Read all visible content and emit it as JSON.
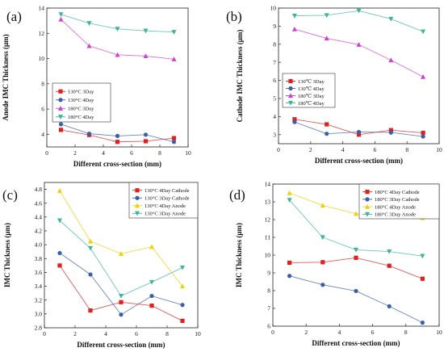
{
  "chart_data": [
    {
      "type": "line",
      "panel_label": "(a)",
      "xlabel": "Different cross-section (mm)",
      "ylabel": "Anode IMC Thickness (μm)",
      "xlim": [
        0,
        10
      ],
      "ylim": [
        3,
        14
      ],
      "xticks": [
        0,
        2,
        4,
        6,
        8,
        10
      ],
      "yticks": [
        4,
        6,
        8,
        10,
        12,
        14
      ],
      "x": [
        1,
        3,
        5,
        7,
        9
      ],
      "legend_position": "middle-left",
      "series": [
        {
          "name": "130°C 3Day",
          "color": "#e02020",
          "marker": "square",
          "values": [
            4.35,
            3.95,
            3.4,
            3.45,
            3.7
          ]
        },
        {
          "name": "130°C 4Day",
          "color": "#3a5fa8",
          "marker": "circle",
          "values": [
            4.8,
            4.05,
            3.87,
            3.97,
            3.4
          ]
        },
        {
          "name": "180°C 3Day",
          "color": "#d040d0",
          "marker": "triangle-up",
          "values": [
            13.1,
            11.0,
            10.3,
            10.2,
            9.95
          ]
        },
        {
          "name": "180°C 4Day",
          "color": "#3cb59a",
          "marker": "triangle-down",
          "values": [
            13.5,
            12.8,
            12.35,
            12.2,
            12.1
          ]
        }
      ]
    },
    {
      "type": "line",
      "panel_label": "(b)",
      "xlabel": "Different cross-section (mm)",
      "ylabel": "Cathode IMC Thickness (μm)",
      "xlim": [
        0,
        10
      ],
      "ylim": [
        2.5,
        10
      ],
      "xticks": [
        0,
        2,
        4,
        6,
        8,
        10
      ],
      "yticks": [
        3,
        4,
        5,
        6,
        7,
        8,
        9,
        10
      ],
      "x": [
        1,
        3,
        5,
        7,
        9
      ],
      "legend_position": "bottom-left",
      "series": [
        {
          "name": "130℃ 3Day",
          "color": "#e02020",
          "marker": "square",
          "values": [
            3.85,
            3.57,
            3.0,
            3.25,
            3.1
          ]
        },
        {
          "name": "130℃ 4Day",
          "color": "#3a5fa8",
          "marker": "circle",
          "values": [
            3.7,
            3.05,
            3.15,
            3.12,
            2.9
          ]
        },
        {
          "name": "180℃ 3Day",
          "color": "#d040d0",
          "marker": "triangle-up",
          "values": [
            8.83,
            8.33,
            7.98,
            7.12,
            6.2
          ]
        },
        {
          "name": "180℃ 4Day",
          "color": "#3cb59a",
          "marker": "triangle-down",
          "values": [
            9.57,
            9.6,
            9.85,
            9.4,
            8.7
          ]
        }
      ]
    },
    {
      "type": "line",
      "panel_label": "(c)",
      "xlabel": "Different cross-section (mm)",
      "ylabel": "IMC Thickness (μm)",
      "xlim": [
        0,
        10
      ],
      "ylim": [
        2.8,
        4.9
      ],
      "xticks": [
        0,
        2,
        4,
        6,
        8,
        10
      ],
      "yticks": [
        2.8,
        3.0,
        3.2,
        3.4,
        3.6,
        3.8,
        4.0,
        4.2,
        4.4,
        4.6,
        4.8
      ],
      "ytick_labels": [
        "2.8",
        "3.0",
        "3.2",
        "3.4",
        "3.6",
        "3.8",
        "4.0",
        "4.2",
        "4.4",
        "4.6",
        "4.8"
      ],
      "x": [
        1,
        3,
        5,
        7,
        9
      ],
      "legend_position": "top-right",
      "series": [
        {
          "name": "130°C 4Day Cathode",
          "color": "#e02020",
          "marker": "square",
          "values": [
            3.7,
            3.05,
            3.17,
            3.12,
            2.9
          ]
        },
        {
          "name": "130°C 3Day Cathode",
          "color": "#3a5fa8",
          "marker": "circle",
          "values": [
            3.88,
            3.57,
            2.99,
            3.26,
            3.13
          ]
        },
        {
          "name": "130°C 4Day Anode",
          "color": "#f0d000",
          "marker": "triangle-up",
          "values": [
            4.78,
            4.05,
            3.87,
            3.97,
            3.4
          ]
        },
        {
          "name": "130°C 3Day Anode",
          "color": "#3cb59a",
          "marker": "triangle-down",
          "values": [
            4.35,
            3.95,
            3.26,
            3.46,
            3.67
          ]
        }
      ]
    },
    {
      "type": "line",
      "panel_label": "(d)",
      "xlabel": "Different cross-section (mm)",
      "ylabel": "IMC Thickness (μm)",
      "xlim": [
        0,
        10
      ],
      "ylim": [
        6,
        14
      ],
      "xticks": [
        0,
        2,
        4,
        6,
        8,
        10
      ],
      "yticks": [
        6,
        7,
        8,
        9,
        10,
        11,
        12,
        13,
        14
      ],
      "x": [
        1,
        3,
        5,
        7,
        9
      ],
      "legend_position": "top-right",
      "series": [
        {
          "name": "180°C 4Day Cathode",
          "color": "#e02020",
          "marker": "square",
          "values": [
            9.57,
            9.6,
            9.85,
            9.4,
            8.67
          ]
        },
        {
          "name": "180°C 3Day Cathode",
          "color": "#3a5fa8",
          "marker": "circle",
          "values": [
            8.83,
            8.33,
            7.98,
            7.12,
            6.2
          ]
        },
        {
          "name": "180°C 4Day Anode",
          "color": "#f0d000",
          "marker": "triangle-up",
          "values": [
            13.5,
            12.8,
            12.33,
            12.2,
            12.1
          ]
        },
        {
          "name": "180°C 3Day Anode",
          "color": "#3cb59a",
          "marker": "triangle-down",
          "values": [
            13.1,
            11.0,
            10.3,
            10.2,
            9.95
          ]
        }
      ]
    }
  ]
}
